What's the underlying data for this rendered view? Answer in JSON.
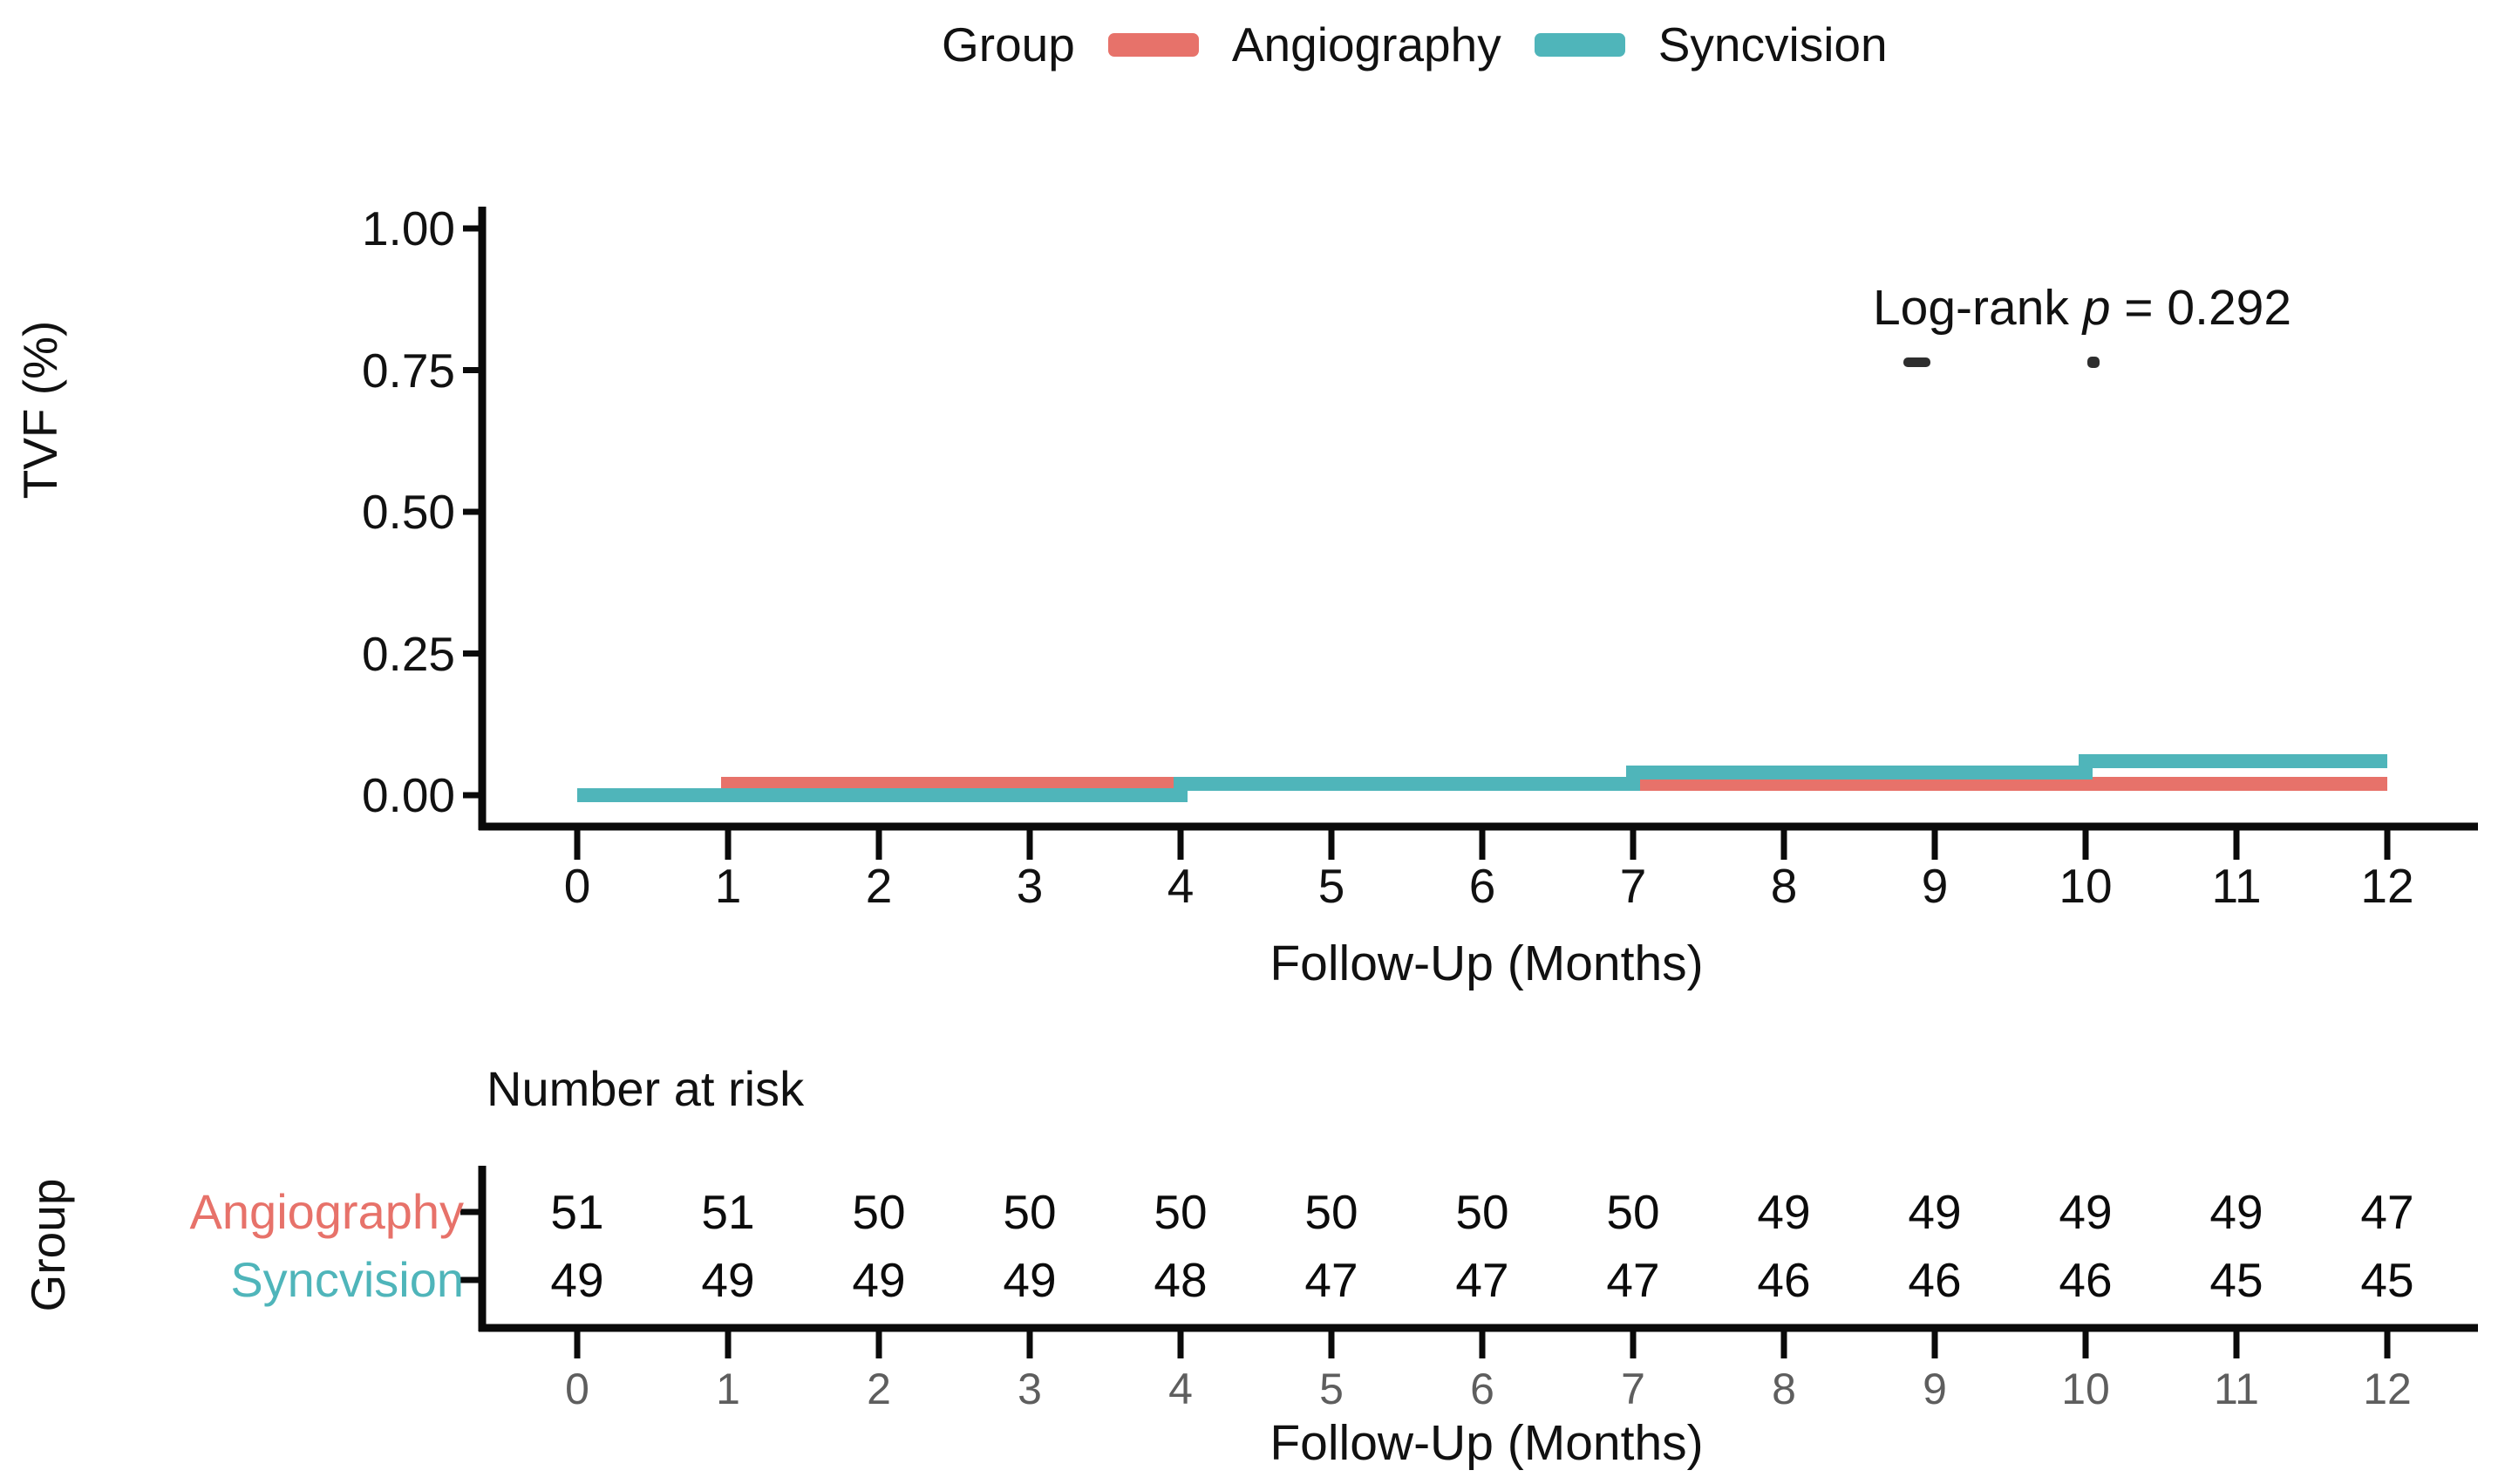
{
  "figure": {
    "background": "#ffffff"
  },
  "legend": {
    "title": "Group",
    "items": [
      {
        "label": "Angiography",
        "color": "#E7726A"
      },
      {
        "label": "Syncvision",
        "color": "#4FB5BA"
      }
    ]
  },
  "annotation": {
    "prefix": "Log-rank ",
    "italic": "p",
    "suffix": " = 0.292",
    "full_text": "Log-rank p = 0.292",
    "p_value": 0.292
  },
  "chart_data": {
    "type": "line",
    "subtype": "kaplan_meier_step_cumulative_incidence",
    "title": "",
    "xlabel": "Follow-Up (Months)",
    "ylabel": "TVF (%)",
    "xlim": [
      0,
      12
    ],
    "ylim": [
      0,
      1
    ],
    "grid": false,
    "legend_position": "top",
    "x_ticks": [
      0,
      1,
      2,
      3,
      4,
      5,
      6,
      7,
      8,
      9,
      10,
      11,
      12
    ],
    "y_ticks": [
      {
        "label": "1.00",
        "value": 1.0
      },
      {
        "label": "0.75",
        "value": 0.75
      },
      {
        "label": "0.50",
        "value": 0.5
      },
      {
        "label": "0.25",
        "value": 0.25
      },
      {
        "label": "0.00",
        "value": 0.0
      }
    ],
    "series": [
      {
        "name": "Angiography",
        "color": "#E7726A",
        "steps": [
          [
            0,
            0.0
          ],
          [
            1,
            0.0
          ],
          [
            1,
            0.02
          ],
          [
            12,
            0.02
          ]
        ]
      },
      {
        "name": "Syncvision",
        "color": "#4FB5BA",
        "steps": [
          [
            0,
            0.0
          ],
          [
            4,
            0.0
          ],
          [
            4,
            0.02
          ],
          [
            7,
            0.02
          ],
          [
            7,
            0.04
          ],
          [
            10,
            0.04
          ],
          [
            10,
            0.06
          ],
          [
            12,
            0.06
          ]
        ]
      }
    ],
    "annotations": [
      {
        "text": "Log-rank p = 0.292",
        "x_month": 10,
        "y_value": 0.88
      }
    ]
  },
  "risk_table": {
    "title": "Number at risk",
    "axis_label": "Group",
    "xlabel": "Follow-Up (Months)",
    "x_ticks": [
      0,
      1,
      2,
      3,
      4,
      5,
      6,
      7,
      8,
      9,
      10,
      11,
      12
    ],
    "rows": [
      {
        "label": "Angiography",
        "color": "#E7726A",
        "values": [
          51,
          51,
          50,
          50,
          50,
          50,
          50,
          50,
          49,
          49,
          49,
          49,
          47
        ]
      },
      {
        "label": "Syncvision",
        "color": "#4FB5BA",
        "values": [
          49,
          49,
          49,
          49,
          48,
          47,
          47,
          47,
          46,
          46,
          46,
          45,
          45
        ]
      }
    ]
  },
  "colors": {
    "axis": "#0a0a0a",
    "tick_label": "#111111",
    "muted_tick_label": "#5e5e5e"
  }
}
